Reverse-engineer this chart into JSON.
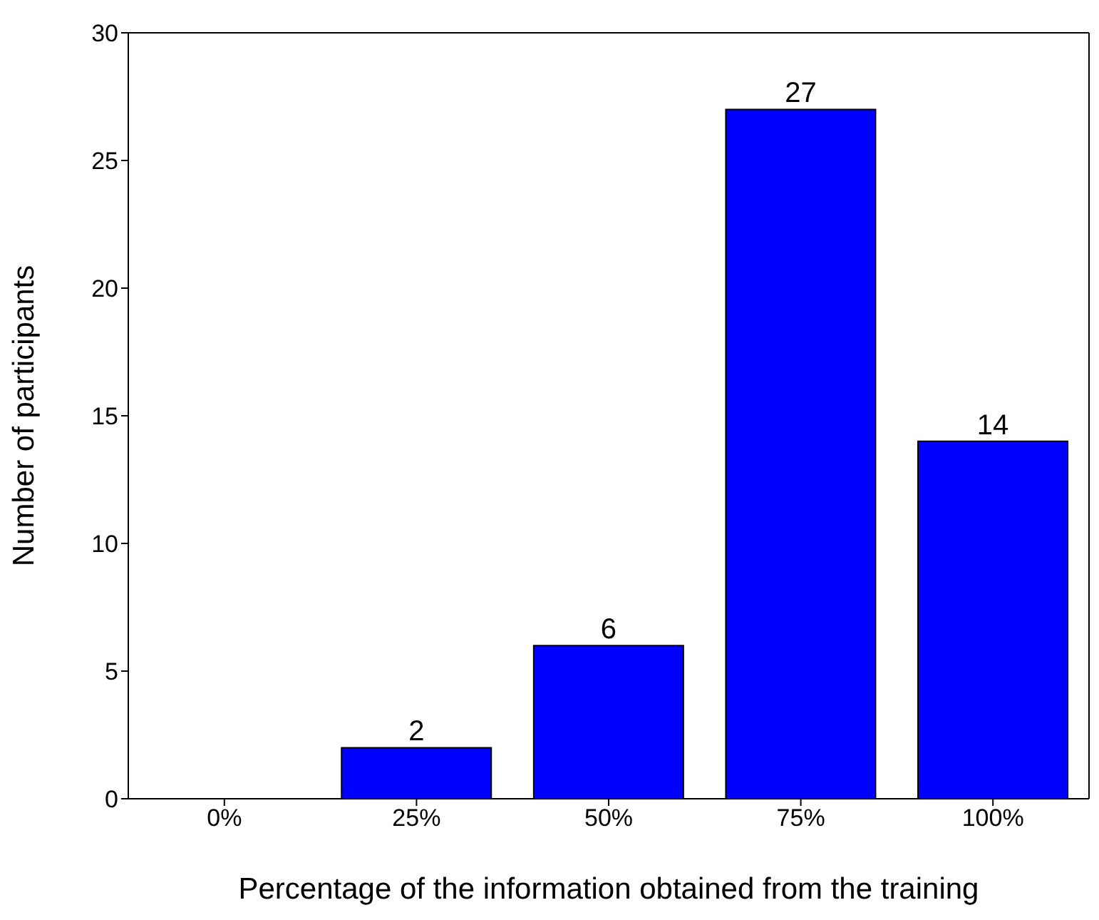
{
  "chart_data": {
    "type": "bar",
    "xlabel": "Percentage of the information obtained from the training",
    "ylabel": "Number of participants",
    "categories": [
      "0%",
      "25%",
      "50%",
      "75%",
      "100%"
    ],
    "values": [
      0,
      2,
      6,
      27,
      14
    ],
    "value_labels": [
      null,
      "2",
      "6",
      "27",
      "14"
    ],
    "color": "#0000ff",
    "ylim": [
      0,
      30
    ],
    "yticks": [
      0,
      5,
      10,
      15,
      20,
      25,
      30
    ],
    "grid": false
  }
}
